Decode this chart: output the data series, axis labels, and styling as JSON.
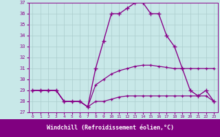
{
  "xlabel": "Windchill (Refroidissement éolien,°C)",
  "hours": [
    0,
    1,
    2,
    3,
    4,
    5,
    6,
    7,
    8,
    9,
    10,
    11,
    12,
    13,
    14,
    15,
    16,
    17,
    18,
    19,
    20,
    21,
    22,
    23
  ],
  "temp_line": [
    29,
    29,
    29,
    29,
    28,
    28,
    28,
    27.5,
    28,
    28,
    28.2,
    28.4,
    28.5,
    28.5,
    28.5,
    28.5,
    28.5,
    28.5,
    28.5,
    28.5,
    28.5,
    28.5,
    28.5,
    28
  ],
  "windchill_line": [
    29,
    29,
    29,
    29,
    28,
    28,
    28,
    27.5,
    29.5,
    30,
    30.5,
    30.8,
    31,
    31.2,
    31.3,
    31.3,
    31.2,
    31.1,
    31,
    31,
    31,
    31,
    31,
    31
  ],
  "curve_line": [
    29,
    29,
    29,
    29,
    28,
    28,
    28,
    27.5,
    31,
    33.5,
    36,
    36,
    36.5,
    37,
    37,
    36,
    36,
    34,
    33,
    31,
    29,
    28.5,
    29,
    28
  ],
  "ylim": [
    27,
    37
  ],
  "yticks": [
    27,
    28,
    29,
    30,
    31,
    32,
    33,
    34,
    35,
    36,
    37
  ],
  "bg_color": "#c8e8e8",
  "grid_color": "#aacccc",
  "line_color": "#880088",
  "xlabel_bg": "#800080",
  "xlabel_fg": "#ffffff"
}
